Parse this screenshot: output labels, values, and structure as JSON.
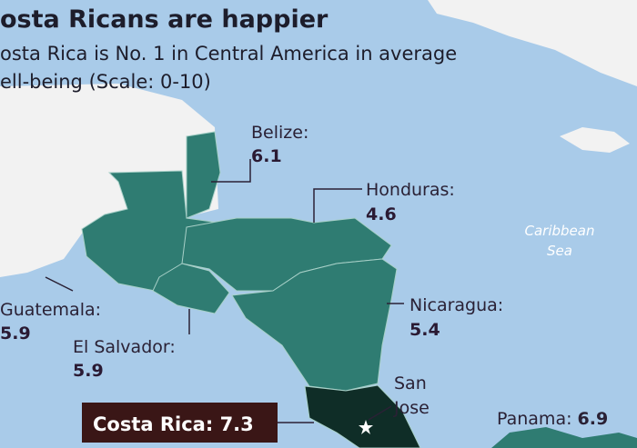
{
  "header": {
    "title": "osta Ricans are happier",
    "subtitle_lines": [
      "osta Rica is No. 1 in Central America in average",
      "ell-being (Scale: 0-10)"
    ]
  },
  "countries": [
    {
      "name": "Belize:",
      "value": 6.1
    },
    {
      "name": "Honduras:",
      "value": 4.6
    },
    {
      "name": "Guatemala:",
      "value": 5.9
    },
    {
      "name": "El Salvador:",
      "value": 5.9
    },
    {
      "name": "Nicaragua:",
      "value": 5.4
    },
    {
      "name": "Costa Rica:",
      "value": 7.3
    },
    {
      "name": "Panama:",
      "value": 6.9
    }
  ],
  "places": {
    "sea": [
      "Caribbean",
      "Sea"
    ],
    "capital": [
      "San",
      "Jose"
    ]
  }
}
